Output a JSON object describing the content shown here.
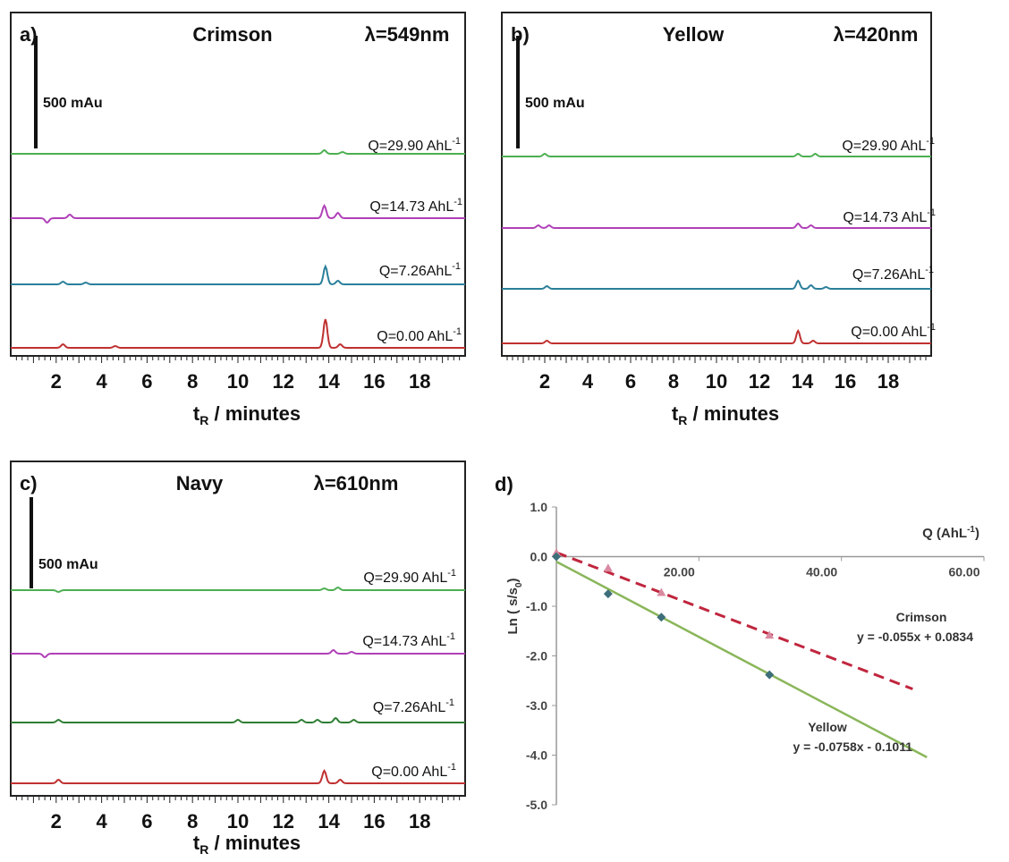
{
  "chart_data": [
    {
      "type": "line",
      "panel_label": "a)",
      "title": "Crimson",
      "wavelength": "λ=549nm",
      "scale_bar_label": "500 mAu",
      "xlabel_main": "t",
      "xlabel_sub": "R",
      "xlabel_rest": " / minutes",
      "xlim": [
        0,
        20
      ],
      "x_ticks": [
        "2",
        "4",
        "6",
        "8",
        "10",
        "12",
        "14",
        "16",
        "18"
      ],
      "series": [
        {
          "label": "Q=29.90 AhL",
          "color": "#4caf50",
          "peaks": [
            [
              13.8,
              4
            ],
            [
              14.6,
              2
            ]
          ]
        },
        {
          "label": "Q=14.73 AhL",
          "color": "#b040b8",
          "peaks": [
            [
              1.6,
              -5
            ],
            [
              2.6,
              4
            ],
            [
              13.8,
              14
            ],
            [
              14.4,
              6
            ]
          ]
        },
        {
          "label": "Q=7.26AhL",
          "color": "#2a7f9a",
          "peaks": [
            [
              2.3,
              3
            ],
            [
              3.3,
              2
            ],
            [
              13.85,
              20
            ],
            [
              14.4,
              4
            ]
          ]
        },
        {
          "label": "Q=0.00 AhL",
          "color": "#c03030",
          "peaks": [
            [
              2.3,
              4
            ],
            [
              4.6,
              2
            ],
            [
              13.85,
              32
            ],
            [
              14.5,
              4
            ]
          ]
        }
      ]
    },
    {
      "type": "line",
      "panel_label": "b)",
      "title": "Yellow",
      "wavelength": "λ=420nm",
      "scale_bar_label": "500 mAu",
      "xlabel_main": "t",
      "xlabel_sub": "R",
      "xlabel_rest": " / minutes",
      "xlim": [
        0,
        20
      ],
      "x_ticks": [
        "2",
        "4",
        "6",
        "8",
        "10",
        "12",
        "14",
        "16",
        "18"
      ],
      "series": [
        {
          "label": "Q=29.90 AhL",
          "color": "#4caf50",
          "peaks": [
            [
              2.0,
              3
            ],
            [
              13.8,
              3
            ],
            [
              14.6,
              3
            ]
          ]
        },
        {
          "label": "Q=14.73 AhL",
          "color": "#b040b8",
          "peaks": [
            [
              1.7,
              3
            ],
            [
              2.2,
              3
            ],
            [
              13.8,
              5
            ],
            [
              14.4,
              3
            ]
          ]
        },
        {
          "label": "Q=7.26AhL",
          "color": "#2a7f9a",
          "peaks": [
            [
              2.1,
              3
            ],
            [
              13.8,
              9
            ],
            [
              14.4,
              4
            ],
            [
              15.1,
              2
            ]
          ]
        },
        {
          "label": "Q=0.00 AhL",
          "color": "#c03030",
          "peaks": [
            [
              2.1,
              3
            ],
            [
              13.8,
              14
            ],
            [
              14.5,
              3
            ]
          ]
        }
      ]
    },
    {
      "type": "line",
      "panel_label": "c)",
      "title": "Navy",
      "wavelength": "λ=610nm",
      "scale_bar_label": "500 mAu",
      "xlabel_main": "t",
      "xlabel_sub": "R",
      "xlabel_rest": " / minutes",
      "xlim": [
        0,
        20
      ],
      "x_ticks": [
        "2",
        "4",
        "6",
        "8",
        "10",
        "12",
        "14",
        "16",
        "18"
      ],
      "series": [
        {
          "label": "Q=29.90 AhL",
          "color": "#4caf50",
          "peaks": [
            [
              2.1,
              -2
            ],
            [
              13.8,
              2
            ],
            [
              14.4,
              3
            ]
          ]
        },
        {
          "label": "Q=14.73 AhL",
          "color": "#b040b8",
          "peaks": [
            [
              1.5,
              -4
            ],
            [
              14.2,
              4
            ],
            [
              15.0,
              2
            ]
          ]
        },
        {
          "label": "Q=7.26AhL",
          "color": "#2e7d32",
          "peaks": [
            [
              2.1,
              3
            ],
            [
              10.0,
              3
            ],
            [
              12.8,
              3
            ],
            [
              13.5,
              3
            ],
            [
              14.3,
              5
            ],
            [
              15.1,
              3
            ]
          ]
        },
        {
          "label": "Q=0.00 AhL",
          "color": "#c03030",
          "peaks": [
            [
              2.1,
              4
            ],
            [
              13.8,
              14
            ],
            [
              14.5,
              4
            ]
          ]
        }
      ]
    },
    {
      "type": "scatter",
      "panel_label": "d)",
      "xlabel": "Q (AhL",
      "xlabel_sup": "-1",
      "xlabel_close": ")",
      "ylabel": "Ln ( s/s",
      "ylabel_sub": "0",
      "ylabel_close": ")",
      "xlim": [
        0,
        60
      ],
      "ylim": [
        -5,
        1
      ],
      "x_ticks": [
        "20.00",
        "40.00",
        "60.00"
      ],
      "y_ticks": [
        "1.0",
        "0.0",
        "-1.0",
        "-2.0",
        "-3.0",
        "-4.0",
        "-5.0"
      ],
      "series": [
        {
          "name": "Crimson",
          "equation": "y = -0.055x + 0.0834",
          "slope": -0.055,
          "intercept": 0.0834,
          "x_end": 50,
          "color": "#c0263e",
          "dashed": true,
          "x": [
            0,
            7.26,
            14.73,
            29.9
          ],
          "y": [
            0.08,
            -0.23,
            -0.72,
            -1.58
          ]
        },
        {
          "name": "Yellow",
          "equation": "y = -0.0758x - 0.1011",
          "slope": -0.0758,
          "intercept": -0.1011,
          "x_end": 52,
          "color": "#8ab65a",
          "dashed": false,
          "x": [
            0,
            7.26,
            14.73,
            29.9
          ],
          "y": [
            0.0,
            -0.75,
            -1.22,
            -2.38
          ]
        }
      ]
    }
  ],
  "colors": {
    "axis": "#222222",
    "crimson_fit": "#c0263e",
    "yellow_fit": "#8ab65a"
  }
}
